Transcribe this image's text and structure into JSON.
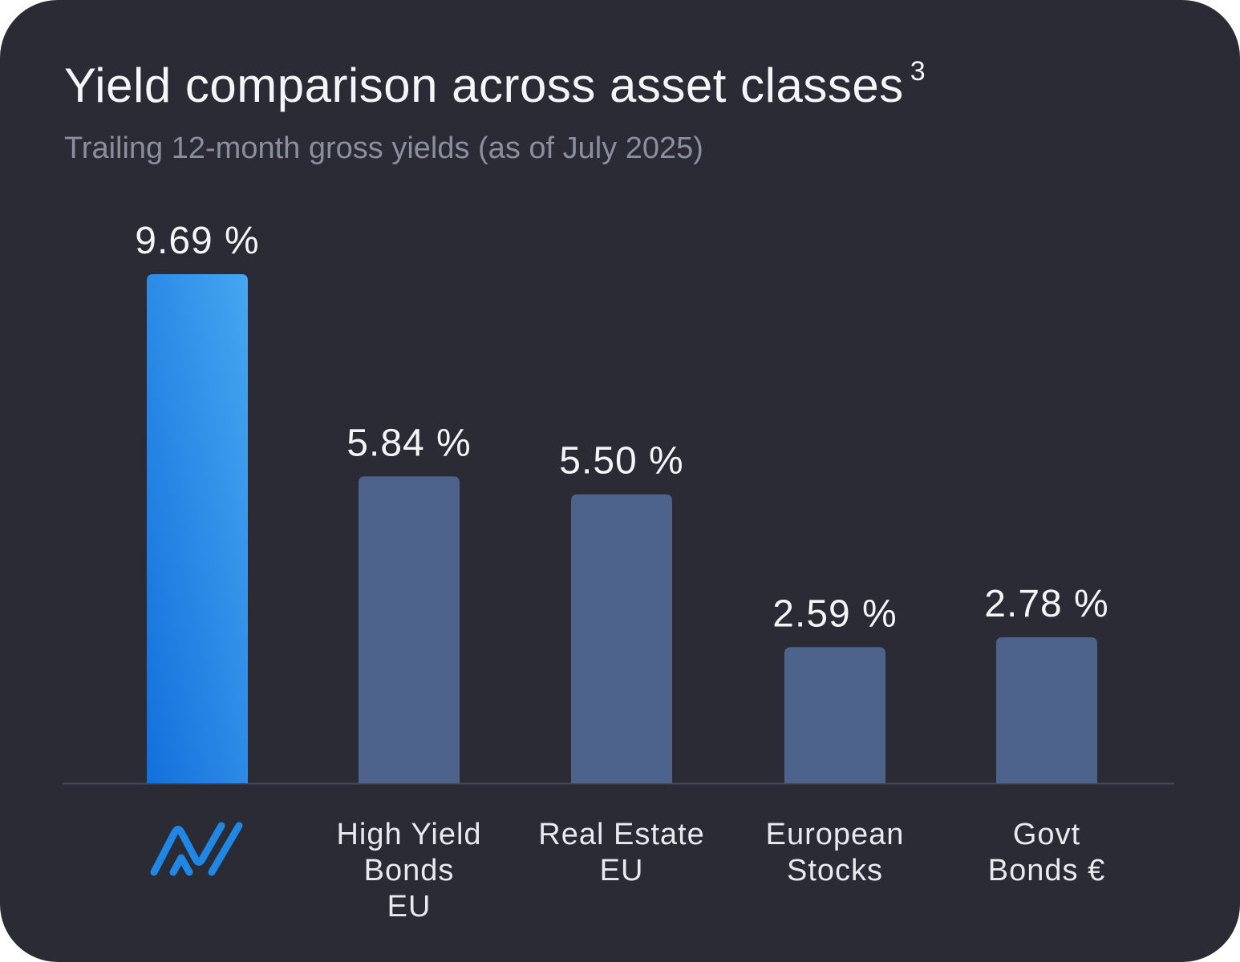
{
  "header": {
    "title": "Yield comparison across asset classes",
    "footnote": "3",
    "subtitle": "Trailing 12-month gross yields (as of July 2025)"
  },
  "colors": {
    "background": "#2a2b35",
    "highlight_bar_top": "#45a6f0",
    "highlight_bar_bottom": "#1270dc",
    "bar": "#4d638c",
    "baseline": "#454856",
    "logo": "#1f88e6"
  },
  "chart_data": {
    "type": "bar",
    "title": "Yield comparison across asset classes",
    "subtitle": "Trailing 12-month gross yields (as of July 2025)",
    "xlabel": "",
    "ylabel": "",
    "ylim": [
      0,
      9.69
    ],
    "grid": false,
    "categories": [
      {
        "label_lines": [],
        "logo": "brand-logo-icon",
        "highlight": true
      },
      {
        "label_lines": [
          "High Yield",
          "Bonds",
          "EU"
        ],
        "highlight": false
      },
      {
        "label_lines": [
          "Real Estate",
          "EU"
        ],
        "highlight": false
      },
      {
        "label_lines": [
          "European",
          "Stocks"
        ],
        "highlight": false
      },
      {
        "label_lines": [
          "Govt",
          "Bonds €"
        ],
        "highlight": false
      }
    ],
    "values": [
      9.69,
      5.84,
      5.5,
      2.59,
      2.78
    ],
    "value_labels": [
      "9.69 %",
      "5.84 %",
      "5.50 %",
      "2.59 %",
      "2.78 %"
    ]
  }
}
